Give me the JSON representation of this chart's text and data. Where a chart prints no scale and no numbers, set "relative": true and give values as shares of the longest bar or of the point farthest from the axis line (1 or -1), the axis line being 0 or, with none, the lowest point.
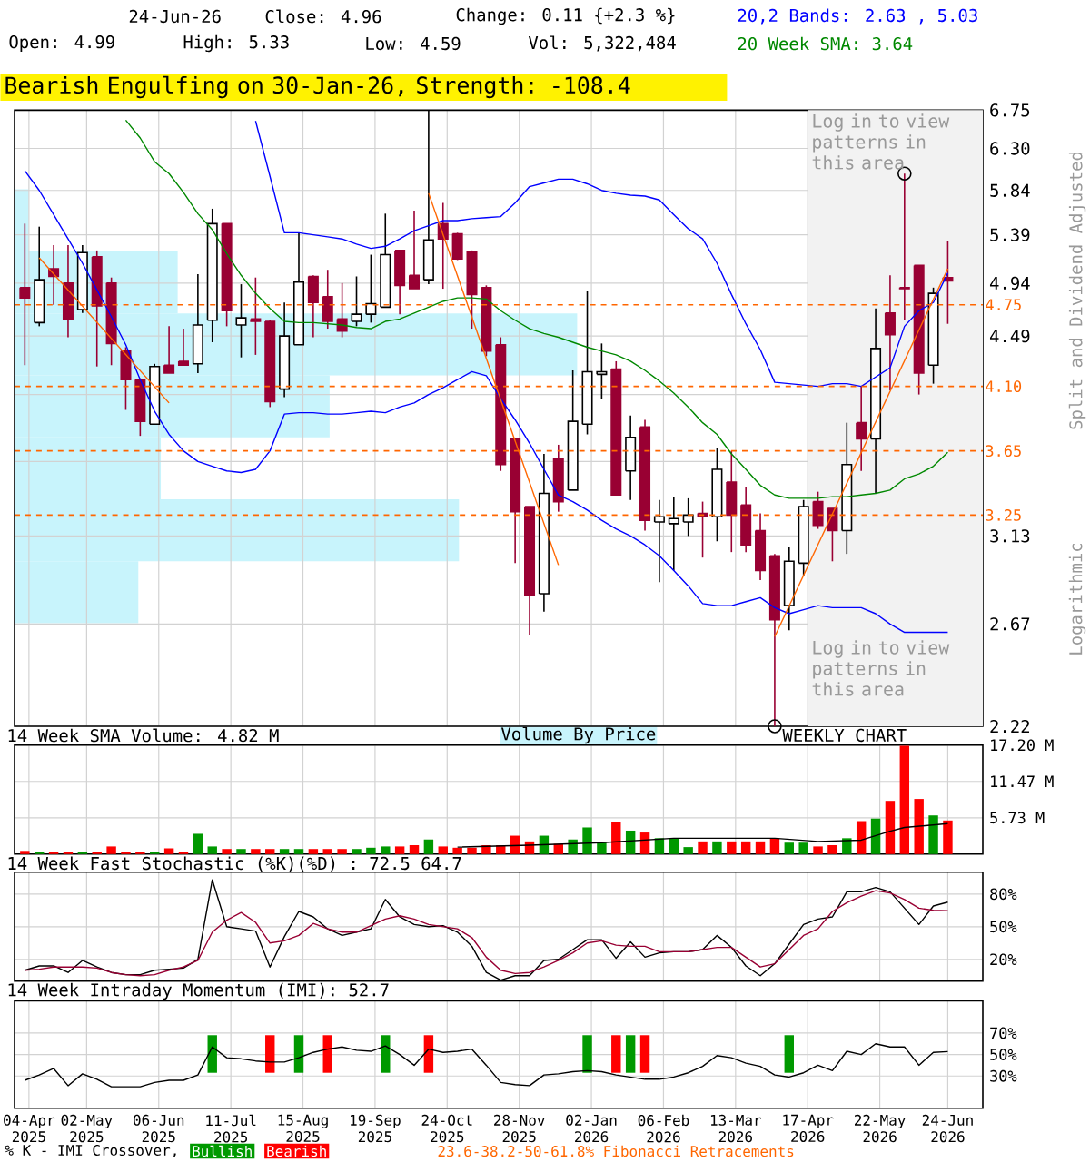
{
  "chart_data": [
    {
      "type": "candlestick",
      "title": "Bearish Engulfing on 30-Jan-26, Strength: -108.4",
      "ylabel": "Split and Dividend Adjusted",
      "colors": [
        "#990033",
        "#ffffff",
        "#990033",
        "#990033",
        "#ffffff",
        "#990033",
        "#990033",
        "#990033",
        "#990033",
        "#ffffff",
        "#990033",
        "#990033",
        "#ffffff",
        "#ffffff",
        "#990033",
        "#ffffff",
        "#990033",
        "#990033",
        "#ffffff",
        "#ffffff",
        "#990033",
        "#990033",
        "#990033",
        "#ffffff",
        "#ffffff",
        "#ffffff",
        "#990033",
        "#990033",
        "#ffffff",
        "#990033",
        "#990033",
        "#990033",
        "#990033",
        "#990033",
        "#990033",
        "#990033",
        "#ffffff",
        "#990033",
        "#ffffff",
        "#ffffff",
        "#ffffff",
        "#990033",
        "#ffffff",
        "#990033",
        "#ffffff",
        "#ffffff",
        "#ffffff",
        "#990033",
        "#ffffff",
        "#990033",
        "#990033",
        "#990033",
        "#990033",
        "#ffffff",
        "#ffffff",
        "#990033",
        "#990033",
        "#ffffff",
        "#990033",
        "#ffffff",
        "#990033",
        "#990033",
        "#990033",
        "#ffffff",
        "#990033"
      ],
      "x": [
        "2025-04-02",
        "2025-04-09",
        "2025-04-16",
        "2025-04-23",
        "2025-04-30",
        "2025-05-07",
        "2025-05-14",
        "2025-05-21",
        "2025-05-28",
        "2025-06-04",
        "2025-06-11",
        "2025-06-18",
        "2025-06-25",
        "2025-07-02",
        "2025-07-09",
        "2025-07-16",
        "2025-07-23",
        "2025-07-30",
        "2025-08-06",
        "2025-08-13",
        "2025-08-20",
        "2025-08-27",
        "2025-09-03",
        "2025-09-10",
        "2025-09-17",
        "2025-09-24",
        "2025-10-01",
        "2025-10-08",
        "2025-10-15",
        "2025-10-22",
        "2025-10-29",
        "2025-11-05",
        "2025-11-12",
        "2025-11-19",
        "2025-11-26",
        "2025-12-03",
        "2025-12-10",
        "2025-12-17",
        "2025-12-24",
        "2025-12-31",
        "2026-01-07",
        "2026-01-14",
        "2026-01-21",
        "2026-01-28",
        "2026-02-04",
        "2026-02-11",
        "2026-02-18",
        "2026-02-25",
        "2026-03-04",
        "2026-03-11",
        "2026-03-18",
        "2026-03-25",
        "2026-04-01",
        "2026-04-08",
        "2026-04-15",
        "2026-04-22",
        "2026-04-29",
        "2026-05-06",
        "2026-05-13",
        "2026-05-20",
        "2026-05-27",
        "2026-06-03",
        "2026-06-10",
        "2026-06-17",
        "2026-06-24"
      ],
      "ohlc": [
        [
          4.9,
          5.5,
          4.26,
          4.81
        ],
        [
          4.6,
          5.47,
          4.57,
          4.97
        ],
        [
          5.07,
          5.29,
          4.75,
          5.0
        ],
        [
          4.94,
          5.29,
          4.48,
          4.63
        ],
        [
          4.71,
          5.29,
          4.68,
          5.22
        ],
        [
          5.18,
          5.24,
          4.25,
          4.74
        ],
        [
          4.94,
          4.99,
          4.26,
          4.43
        ],
        [
          4.37,
          4.4,
          3.93,
          4.15
        ],
        [
          4.15,
          4.16,
          3.75,
          3.85
        ],
        [
          3.83,
          4.27,
          3.83,
          4.25
        ],
        [
          4.26,
          4.57,
          4.2,
          4.2
        ],
        [
          4.29,
          4.55,
          4.26,
          4.26
        ],
        [
          4.27,
          5.02,
          4.2,
          4.58
        ],
        [
          4.62,
          5.65,
          4.44,
          5.5
        ],
        [
          5.5,
          5.5,
          4.57,
          4.7
        ],
        [
          4.58,
          4.93,
          4.32,
          4.64
        ],
        [
          4.63,
          4.99,
          4.34,
          4.61
        ],
        [
          4.61,
          4.62,
          3.95,
          3.99
        ],
        [
          4.08,
          4.77,
          4.02,
          4.49
        ],
        [
          4.42,
          5.41,
          4.42,
          4.95
        ],
        [
          5.0,
          5.01,
          4.48,
          4.77
        ],
        [
          4.82,
          5.06,
          4.55,
          4.61
        ],
        [
          4.63,
          4.94,
          4.48,
          4.53
        ],
        [
          4.61,
          5.0,
          4.57,
          4.67
        ],
        [
          4.67,
          5.2,
          4.6,
          4.76
        ],
        [
          4.73,
          5.6,
          4.73,
          5.2
        ],
        [
          5.24,
          5.24,
          4.67,
          4.92
        ],
        [
          5.01,
          5.63,
          4.89,
          4.89
        ],
        [
          4.97,
          6.75,
          4.93,
          5.34
        ],
        [
          5.5,
          5.71,
          4.89,
          5.35
        ],
        [
          5.4,
          5.41,
          5.15,
          5.16
        ],
        [
          5.23,
          5.24,
          4.55,
          4.84
        ],
        [
          4.9,
          4.92,
          4.33,
          4.37
        ],
        [
          4.42,
          4.48,
          3.52,
          3.56
        ],
        [
          3.73,
          3.73,
          2.98,
          3.27
        ],
        [
          3.3,
          3.3,
          2.62,
          2.81
        ],
        [
          2.82,
          3.63,
          2.73,
          3.38
        ],
        [
          3.6,
          3.69,
          3.27,
          3.33
        ],
        [
          3.4,
          4.22,
          3.4,
          3.85
        ],
        [
          3.83,
          4.87,
          3.76,
          4.21
        ],
        [
          4.19,
          4.43,
          4.01,
          4.21
        ],
        [
          4.23,
          4.29,
          3.37,
          3.37
        ],
        [
          3.52,
          3.89,
          3.34,
          3.74
        ],
        [
          3.81,
          3.86,
          3.16,
          3.22
        ],
        [
          3.21,
          3.34,
          2.88,
          3.24
        ],
        [
          3.2,
          3.36,
          2.94,
          3.23
        ],
        [
          3.21,
          3.35,
          3.13,
          3.25
        ],
        [
          3.26,
          3.33,
          3.01,
          3.24
        ],
        [
          3.24,
          3.67,
          3.1,
          3.53
        ],
        [
          3.45,
          3.65,
          3.04,
          3.25
        ],
        [
          3.31,
          3.42,
          3.04,
          3.08
        ],
        [
          3.16,
          3.26,
          2.89,
          2.94
        ],
        [
          3.02,
          3.03,
          2.22,
          2.69
        ],
        [
          2.76,
          3.07,
          2.64,
          2.99
        ],
        [
          2.98,
          3.34,
          2.91,
          3.3
        ],
        [
          3.33,
          3.39,
          3.17,
          3.19
        ],
        [
          3.29,
          3.29,
          2.99,
          3.16
        ],
        [
          3.16,
          3.84,
          3.03,
          3.56
        ],
        [
          3.84,
          4.1,
          3.52,
          3.73
        ],
        [
          3.73,
          4.72,
          3.38,
          4.39
        ],
        [
          4.68,
          5.01,
          4.07,
          4.5
        ],
        [
          4.9,
          6.02,
          4.62,
          4.89
        ],
        [
          5.1,
          5.1,
          4.04,
          4.2
        ],
        [
          4.26,
          4.9,
          4.12,
          4.85
        ],
        [
          4.99,
          5.33,
          4.59,
          4.96
        ]
      ],
      "series": [
        {
          "name": "20,2 Bands: 2.63 , 5.03",
          "type": "line",
          "color": "#0000ff",
          "values": [
            null,
            null,
            null,
            null,
            null,
            null,
            null,
            null,
            null,
            null,
            null,
            null,
            null,
            null,
            null,
            null,
            6.62,
            5.99,
            5.41,
            5.41,
            5.39,
            5.37,
            5.35,
            5.3,
            5.26,
            5.28,
            5.35,
            5.43,
            5.48,
            5.53,
            5.53,
            5.55,
            5.56,
            5.57,
            5.71,
            5.88,
            5.92,
            5.96,
            5.96,
            5.91,
            5.84,
            5.81,
            5.79,
            5.78,
            5.74,
            5.59,
            5.45,
            5.35,
            5.12,
            4.84,
            4.59,
            4.38,
            4.13,
            4.12,
            4.11,
            4.1,
            4.12,
            4.12,
            4.1,
            4.17,
            4.24,
            4.57,
            4.7,
            4.77,
            5.03
          ]
        },
        {
          "type": "line",
          "color": "#0000ff",
          "values": [
            6.05,
            5.84,
            5.59,
            5.35,
            5.12,
            4.88,
            4.65,
            4.42,
            4.15,
            3.92,
            3.76,
            3.65,
            3.58,
            3.55,
            3.52,
            3.51,
            3.53,
            3.65,
            3.9,
            3.91,
            3.91,
            3.9,
            3.9,
            3.91,
            3.92,
            3.91,
            3.95,
            3.98,
            4.04,
            4.09,
            4.15,
            4.21,
            4.18,
            4.01,
            3.86,
            3.7,
            3.53,
            3.37,
            3.33,
            3.28,
            3.22,
            3.17,
            3.13,
            3.08,
            3.02,
            2.94,
            2.86,
            2.77,
            2.76,
            2.76,
            2.78,
            2.8,
            2.75,
            2.72,
            2.74,
            2.76,
            2.75,
            2.75,
            2.75,
            2.72,
            2.67,
            2.63,
            2.63,
            2.63,
            2.63
          ]
        },
        {
          "name": "20 Week SMA: 3.64",
          "type": "line",
          "color": "#008800",
          "values": [
            null,
            null,
            null,
            null,
            null,
            null,
            null,
            6.63,
            6.42,
            6.15,
            6.02,
            5.82,
            5.6,
            5.44,
            5.21,
            5.01,
            4.85,
            4.72,
            4.61,
            4.6,
            4.6,
            4.59,
            4.58,
            4.56,
            4.55,
            4.61,
            4.63,
            4.68,
            4.73,
            4.78,
            4.81,
            4.81,
            4.8,
            4.7,
            4.62,
            4.55,
            4.51,
            4.48,
            4.44,
            4.4,
            4.37,
            4.34,
            4.29,
            4.22,
            4.14,
            4.05,
            3.95,
            3.84,
            3.76,
            3.63,
            3.53,
            3.43,
            3.37,
            3.35,
            3.35,
            3.35,
            3.36,
            3.36,
            3.37,
            3.38,
            3.4,
            3.47,
            3.5,
            3.55,
            3.64
          ]
        },
        {
          "type": "line",
          "color": "#ff6600",
          "x": [
            "2025-04-09",
            "2025-06-11"
          ],
          "values": [
            5.17,
            3.98
          ]
        },
        {
          "type": "line",
          "color": "#ff6600",
          "x": [
            "2025-10-15",
            "2025-12-17"
          ],
          "values": [
            5.81,
            2.97
          ]
        },
        {
          "type": "line",
          "color": "#ff6600",
          "x": [
            "2026-04-01",
            "2026-06-24"
          ],
          "values": [
            2.61,
            5.07
          ]
        },
        {
          "type": "scatter",
          "marker": "circle",
          "color": "#000000",
          "x": [
            "2026-04-01",
            "2026-06-03"
          ],
          "values": [
            2.22,
            6.02
          ]
        }
      ],
      "xlim": [
        "2025-03-28",
        "2026-07-11"
      ],
      "xticks": [
        {
          "value": "2025-04-04",
          "label": null
        },
        {
          "value": "2025-05-02",
          "label": null
        },
        {
          "value": "2025-06-06",
          "label": null
        },
        {
          "value": "2025-07-11",
          "label": null
        },
        {
          "value": "2025-08-15",
          "label": null
        },
        {
          "value": "2025-09-19",
          "label": null
        },
        {
          "value": "2025-10-24",
          "label": null
        },
        {
          "value": "2025-11-28",
          "label": null
        },
        {
          "value": "2026-01-02",
          "label": null
        },
        {
          "value": "2026-02-06",
          "label": null
        },
        {
          "value": "2026-03-13",
          "label": null
        },
        {
          "value": "2026-04-17",
          "label": null
        },
        {
          "value": "2026-05-22",
          "label": null
        },
        {
          "value": "2026-06-24",
          "label": null
        }
      ],
      "ylim": [
        2.22,
        6.75
      ],
      "yticks": [
        6.75,
        {
          "value": 6.3,
          "label": "6.30"
        },
        5.84,
        5.39,
        4.94,
        4.49,
        {
          "value": 4.04,
          "label": null
        },
        {
          "value": 3.58,
          "label": null
        },
        3.13,
        2.67,
        2.22
      ],
      "log": "y",
      "grid": true,
      "tick_labels": "y",
      "legend": "top right",
      "ref_lines": [
        {
          "axis": "y",
          "value": 4.75,
          "label": "4.75",
          "color": "#ff6600",
          "line_style": "dashed"
        },
        {
          "axis": "y",
          "value": 4.1,
          "label": "4.10",
          "color": "#ff6600",
          "line_style": "dashed"
        },
        {
          "axis": "y",
          "value": 3.65,
          "label": "3.65",
          "color": "#ff6600",
          "line_style": "dashed"
        },
        {
          "axis": "y",
          "value": 3.25,
          "label": "3.25",
          "color": "#ff6600",
          "line_style": "dashed"
        }
      ],
      "bands": [
        {
          "axis": "x",
          "from": "2026-04-17",
          "to": "2026-07-11",
          "color": "#f2f2f2"
        }
      ],
      "annotations": [
        "24-Jun-26",
        "Close: 4.96",
        "Change: 0.11 {+2.3 %}",
        "Open: 4.99",
        "High: 5.33",
        "Low: 4.59",
        "Vol: 5,322,484",
        "Log in to view patterns in this area",
        "Log in to view patterns in this area",
        "WEEKLY CHART",
        "Logarithmic"
      ]
    },
    {
      "type": "bar",
      "orientation": "horizontal",
      "relative": true,
      "title": "Volume By Price",
      "color": "#c8f4fc",
      "categories": [
        null,
        null,
        null,
        null,
        null,
        null,
        null
      ],
      "values": [
        0.025,
        0.29,
        1,
        0.56,
        0.26,
        0.79,
        0.22
      ]
    },
    {
      "type": "bar",
      "title": "14 Week SMA Volume: 4.82 M",
      "x": [
        "2025-04-02",
        "2025-04-09",
        "2025-04-16",
        "2025-04-23",
        "2025-04-30",
        "2025-05-07",
        "2025-05-14",
        "2025-05-21",
        "2025-05-28",
        "2025-06-04",
        "2025-06-11",
        "2025-06-18",
        "2025-06-25",
        "2025-07-02",
        "2025-07-09",
        "2025-07-16",
        "2025-07-23",
        "2025-07-30",
        "2025-08-06",
        "2025-08-13",
        "2025-08-20",
        "2025-08-27",
        "2025-09-03",
        "2025-09-10",
        "2025-09-17",
        "2025-09-24",
        "2025-10-01",
        "2025-10-08",
        "2025-10-15",
        "2025-10-22",
        "2025-10-29",
        "2025-11-05",
        "2025-11-12",
        "2025-11-19",
        "2025-11-26",
        "2025-12-03",
        "2025-12-10",
        "2025-12-17",
        "2025-12-24",
        "2025-12-31",
        "2026-01-07",
        "2026-01-14",
        "2026-01-21",
        "2026-01-28",
        "2026-02-04",
        "2026-02-11",
        "2026-02-18",
        "2026-02-25",
        "2026-03-04",
        "2026-03-11",
        "2026-03-18",
        "2026-03-25",
        "2026-04-01",
        "2026-04-08",
        "2026-04-15",
        "2026-04-22",
        "2026-04-29",
        "2026-05-06",
        "2026-05-13",
        "2026-05-20",
        "2026-05-27",
        "2026-06-03",
        "2026-06-10",
        "2026-06-17",
        "2026-06-24"
      ],
      "series": [
        {
          "type": "bar",
          "values": [
            0.5,
            0.4,
            0.4,
            0.4,
            0.4,
            0.4,
            1.2,
            0.4,
            0.4,
            0.4,
            0.9,
            0.4,
            3.2,
            1.2,
            0.8,
            0.8,
            0.8,
            0.8,
            0.8,
            0.8,
            0.8,
            0.8,
            0.8,
            0.8,
            1.0,
            1.2,
            1.2,
            1.4,
            2.3,
            1.2,
            1.0,
            1.0,
            1.4,
            1.4,
            2.9,
            2.0,
            2.9,
            1.6,
            2.3,
            4.2,
            1.8,
            5.0,
            3.7,
            3.4,
            2.5,
            2.5,
            1.1,
            2.0,
            2.0,
            2.0,
            2.0,
            2.0,
            2.5,
            1.8,
            1.8,
            1.2,
            1.4,
            2.5,
            5.2,
            5.6,
            8.4,
            17.1,
            8.7,
            6.1,
            5.3
          ],
          "colors": [
            "#ff0000",
            "#009900",
            "#ff0000",
            "#ff0000",
            "#009900",
            "#ff0000",
            "#ff0000",
            "#ff0000",
            "#ff0000",
            "#009900",
            "#ff0000",
            "#ff0000",
            "#009900",
            "#009900",
            "#ff0000",
            "#009900",
            "#ff0000",
            "#ff0000",
            "#009900",
            "#009900",
            "#ff0000",
            "#ff0000",
            "#ff0000",
            "#009900",
            "#009900",
            "#009900",
            "#ff0000",
            "#ff0000",
            "#009900",
            "#ff0000",
            "#ff0000",
            "#ff0000",
            "#ff0000",
            "#ff0000",
            "#ff0000",
            "#ff0000",
            "#009900",
            "#ff0000",
            "#009900",
            "#009900",
            "#009900",
            "#ff0000",
            "#009900",
            "#ff0000",
            "#009900",
            "#009900",
            "#009900",
            "#ff0000",
            "#009900",
            "#ff0000",
            "#ff0000",
            "#ff0000",
            "#ff0000",
            "#009900",
            "#009900",
            "#ff0000",
            "#ff0000",
            "#009900",
            "#ff0000",
            "#009900",
            "#ff0000",
            "#ff0000",
            "#ff0000",
            "#009900",
            "#ff0000"
          ]
        },
        {
          "type": "line",
          "color": "#000000",
          "x": [
            "2025-10-29",
            "2025-12-03",
            "2026-01-07",
            "2026-02-11",
            "2026-03-18",
            "2026-04-01",
            "2026-04-22",
            "2026-05-13",
            "2026-05-27",
            "2026-06-03",
            "2026-06-24"
          ],
          "values": [
            1.1,
            1.4,
            1.8,
            2.5,
            2.5,
            2.5,
            2.0,
            2.2,
            3.6,
            4.2,
            4.8
          ]
        }
      ],
      "xlim": [
        "2025-03-28",
        "2026-07-11"
      ],
      "xticks": [
        {
          "value": "2025-04-04",
          "label": null
        },
        {
          "value": "2025-05-02",
          "label": null
        },
        {
          "value": "2025-06-06",
          "label": null
        },
        {
          "value": "2025-07-11",
          "label": null
        },
        {
          "value": "2025-08-15",
          "label": null
        },
        {
          "value": "2025-09-19",
          "label": null
        },
        {
          "value": "2025-10-24",
          "label": null
        },
        {
          "value": "2025-11-28",
          "label": null
        },
        {
          "value": "2026-01-02",
          "label": null
        },
        {
          "value": "2026-02-06",
          "label": null
        },
        {
          "value": "2026-03-13",
          "label": null
        },
        {
          "value": "2026-04-17",
          "label": null
        },
        {
          "value": "2026-05-22",
          "label": null
        },
        {
          "value": "2026-06-24",
          "label": null
        }
      ],
      "ylim": [
        0,
        17.2
      ],
      "yticks": [
        {
          "value": 5.73,
          "label": "5.73 M"
        },
        {
          "value": 11.47,
          "label": "11.47 M"
        },
        {
          "value": 17.2,
          "label": "17.20 M"
        }
      ],
      "grid": true,
      "tick_labels": "y"
    },
    {
      "type": "line",
      "title": "14 Week Fast Stochastic (%K)(%D) : 72.5 64.7",
      "x": [
        "2025-04-02",
        "2025-04-09",
        "2025-04-16",
        "2025-04-23",
        "2025-04-30",
        "2025-05-07",
        "2025-05-14",
        "2025-05-21",
        "2025-05-28",
        "2025-06-04",
        "2025-06-11",
        "2025-06-18",
        "2025-06-25",
        "2025-07-02",
        "2025-07-09",
        "2025-07-16",
        "2025-07-23",
        "2025-07-30",
        "2025-08-06",
        "2025-08-13",
        "2025-08-20",
        "2025-08-27",
        "2025-09-03",
        "2025-09-10",
        "2025-09-17",
        "2025-09-24",
        "2025-10-01",
        "2025-10-08",
        "2025-10-15",
        "2025-10-22",
        "2025-10-29",
        "2025-11-05",
        "2025-11-12",
        "2025-11-19",
        "2025-11-26",
        "2025-12-03",
        "2025-12-10",
        "2025-12-17",
        "2025-12-24",
        "2025-12-31",
        "2026-01-07",
        "2026-01-14",
        "2026-01-21",
        "2026-01-28",
        "2026-02-04",
        "2026-02-11",
        "2026-02-18",
        "2026-02-25",
        "2026-03-04",
        "2026-03-11",
        "2026-03-18",
        "2026-03-25",
        "2026-04-01",
        "2026-04-08",
        "2026-04-15",
        "2026-04-22",
        "2026-04-29",
        "2026-05-06",
        "2026-05-13",
        "2026-05-20",
        "2026-05-27",
        "2026-06-03",
        "2026-06-10",
        "2026-06-17",
        "2026-06-24"
      ],
      "series": [
        {
          "color": "#000000",
          "values": [
            10,
            14,
            14,
            8,
            19,
            13,
            8,
            6,
            6,
            10,
            11,
            12,
            20,
            93,
            50,
            48,
            46,
            13,
            41,
            64,
            59,
            48,
            42,
            45,
            48,
            75,
            59,
            52,
            50,
            51,
            45,
            32,
            8,
            1,
            5,
            5,
            19,
            20,
            29,
            38,
            38,
            21,
            36,
            22,
            26,
            27,
            27,
            29,
            42,
            31,
            14,
            5,
            16,
            34,
            52,
            57,
            59,
            82,
            82,
            86,
            82,
            67,
            52,
            69,
            72.5
          ]
        },
        {
          "color": "#990033",
          "values": [
            10,
            11,
            13,
            13,
            13,
            12,
            8,
            6,
            5,
            6,
            10,
            13,
            19,
            45,
            56,
            63,
            54,
            35,
            37,
            42,
            53,
            48,
            45,
            45,
            51,
            57,
            60,
            57,
            52,
            50,
            48,
            40,
            22,
            10,
            7,
            8,
            13,
            19,
            26,
            35,
            37,
            33,
            32,
            32,
            27,
            27,
            27,
            29,
            31,
            31,
            22,
            13,
            16,
            29,
            42,
            48,
            64,
            72,
            78,
            83,
            81,
            75,
            67,
            65,
            64.7
          ]
        }
      ],
      "xlim": [
        "2025-03-28",
        "2026-07-11"
      ],
      "xticks": [
        {
          "value": "2025-04-04",
          "label": null
        },
        {
          "value": "2025-05-02",
          "label": null
        },
        {
          "value": "2025-06-06",
          "label": null
        },
        {
          "value": "2025-07-11",
          "label": null
        },
        {
          "value": "2025-08-15",
          "label": null
        },
        {
          "value": "2025-09-19",
          "label": null
        },
        {
          "value": "2025-10-24",
          "label": null
        },
        {
          "value": "2025-11-28",
          "label": null
        },
        {
          "value": "2026-01-02",
          "label": null
        },
        {
          "value": "2026-02-06",
          "label": null
        },
        {
          "value": "2026-03-13",
          "label": null
        },
        {
          "value": "2026-04-17",
          "label": null
        },
        {
          "value": "2026-05-22",
          "label": null
        },
        {
          "value": "2026-06-24",
          "label": null
        }
      ],
      "ylim": [
        0,
        100
      ],
      "yticks": [
        {
          "value": 20,
          "label": "20%"
        },
        {
          "value": 50,
          "label": "50%"
        },
        {
          "value": 80,
          "label": "80%"
        }
      ],
      "grid": true,
      "tick_labels": "y"
    },
    {
      "type": "line",
      "title": "14 Week Intraday Momentum (IMI): 52.7",
      "legend": "bottom",
      "legend_title": "% K - IMI Crossover,",
      "x": [
        "2025-04-02",
        "2025-04-09",
        "2025-04-16",
        "2025-04-23",
        "2025-04-30",
        "2025-05-07",
        "2025-05-14",
        "2025-05-21",
        "2025-05-28",
        "2025-06-04",
        "2025-06-11",
        "2025-06-18",
        "2025-06-25",
        "2025-07-02",
        "2025-07-09",
        "2025-07-16",
        "2025-07-23",
        "2025-07-30",
        "2025-08-06",
        "2025-08-13",
        "2025-08-20",
        "2025-08-27",
        "2025-09-03",
        "2025-09-10",
        "2025-09-17",
        "2025-09-24",
        "2025-10-01",
        "2025-10-08",
        "2025-10-15",
        "2025-10-22",
        "2025-10-29",
        "2025-11-05",
        "2025-11-12",
        "2025-11-19",
        "2025-11-26",
        "2025-12-03",
        "2025-12-10",
        "2025-12-17",
        "2025-12-24",
        "2025-12-31",
        "2026-01-07",
        "2026-01-14",
        "2026-01-21",
        "2026-01-28",
        "2026-02-04",
        "2026-02-11",
        "2026-02-18",
        "2026-02-25",
        "2026-03-04",
        "2026-03-11",
        "2026-03-18",
        "2026-03-25",
        "2026-04-01",
        "2026-04-08",
        "2026-04-15",
        "2026-04-22",
        "2026-04-29",
        "2026-05-06",
        "2026-05-13",
        "2026-05-20",
        "2026-05-27",
        "2026-06-03",
        "2026-06-10",
        "2026-06-17",
        "2026-06-24"
      ],
      "series": [
        {
          "type": "bar",
          "name": "Bullish",
          "color": "#009900",
          "x": [
            "2025-07-02",
            "2025-08-13",
            "2025-09-24",
            "2025-12-31",
            "2026-01-21",
            "2026-04-08"
          ],
          "base": [
            33,
            33,
            33,
            33,
            33,
            33
          ],
          "values": [
            35,
            35,
            35,
            35,
            35,
            35
          ]
        },
        {
          "type": "bar",
          "name": "Bearish",
          "color": "#ff0000",
          "x": [
            "2025-07-30",
            "2025-08-27",
            "2025-10-15",
            "2026-01-14",
            "2026-01-28"
          ],
          "base": [
            33,
            33,
            33,
            33,
            33
          ],
          "values": [
            35,
            35,
            35,
            35,
            35
          ]
        },
        {
          "type": "line",
          "color": "#000000",
          "values": [
            26,
            31,
            37,
            21,
            32,
            27,
            20,
            20,
            20,
            24,
            26,
            26,
            31,
            57,
            47,
            46,
            44,
            43,
            43,
            47,
            52,
            55,
            57,
            54,
            53,
            58,
            50,
            40,
            55,
            52,
            53,
            55,
            40,
            24,
            22,
            21,
            31,
            32,
            34,
            35,
            34,
            31,
            29,
            27,
            27,
            29,
            33,
            39,
            49,
            47,
            42,
            39,
            31,
            29,
            33,
            40,
            35,
            53,
            50,
            60,
            57,
            57,
            40,
            52,
            52.7
          ]
        }
      ],
      "xlim": [
        "2025-03-28",
        "2026-07-11"
      ],
      "xticks": [
        {
          "value": "2025-04-04",
          "label": "04-Apr 2025"
        },
        {
          "value": "2025-05-02",
          "label": "02-May 2025"
        },
        {
          "value": "2025-06-06",
          "label": "06-Jun 2025"
        },
        {
          "value": "2025-07-11",
          "label": "11-Jul 2025"
        },
        {
          "value": "2025-08-15",
          "label": "15-Aug 2025"
        },
        {
          "value": "2025-09-19",
          "label": "19-Sep 2025"
        },
        {
          "value": "2025-10-24",
          "label": "24-Oct 2025"
        },
        {
          "value": "2025-11-28",
          "label": "28-Nov 2025"
        },
        {
          "value": "2026-01-02",
          "label": "02-Jan 2026"
        },
        {
          "value": "2026-02-06",
          "label": "06-Feb 2026"
        },
        {
          "value": "2026-03-13",
          "label": "13-Mar 2026"
        },
        {
          "value": "2026-04-17",
          "label": "17-Apr 2026"
        },
        {
          "value": "2026-05-22",
          "label": "22-May 2026"
        },
        {
          "value": "2026-06-24",
          "label": "24-Jun 2026"
        }
      ],
      "ylim": [
        0,
        100
      ],
      "yticks": [
        {
          "value": 30,
          "label": "30%"
        },
        {
          "value": 50,
          "label": "50%"
        },
        {
          "value": 70,
          "label": "70%"
        }
      ],
      "grid": true,
      "annotations": [
        "23.6-38.2-50-61.8% Fibonacci Retracements"
      ]
    }
  ]
}
